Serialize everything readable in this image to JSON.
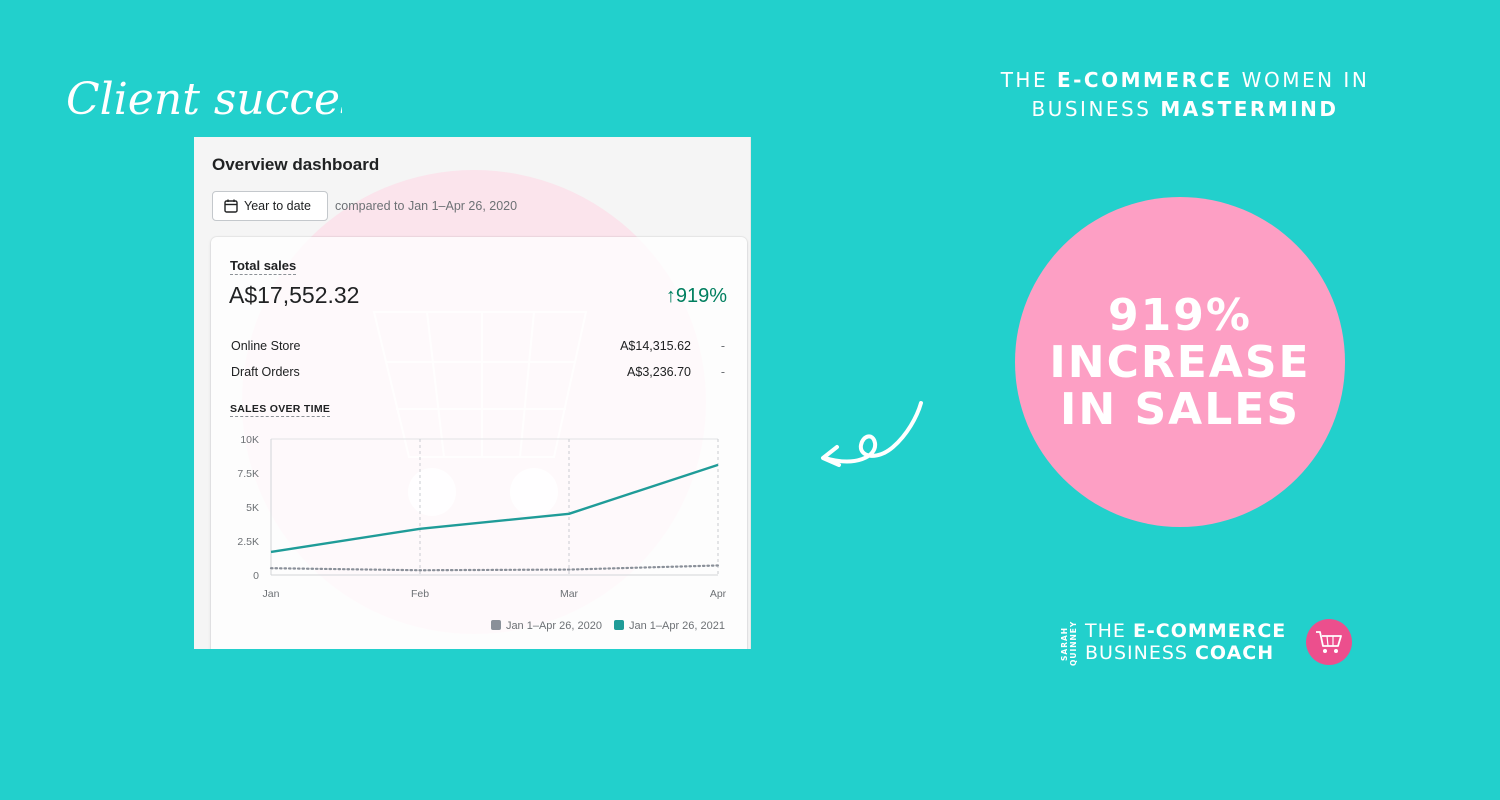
{
  "script_title": "Client success",
  "headline": {
    "line1_pre": "THE ",
    "line1_bold": "E-COMMERCE",
    "line1_post": " WOMEN IN",
    "line2_pre": "BUSINESS ",
    "line2_bold": "MASTERMIND"
  },
  "circle": {
    "line1": "919%",
    "line2": "INCREASE",
    "line3": "IN SALES",
    "color": "#fd9fc4"
  },
  "dashboard": {
    "title": "Overview dashboard",
    "date_button": "Year to date",
    "compare_text": "compared to Jan 1–Apr 26, 2020",
    "total_sales_label": "Total sales",
    "total_sales_value": "A$17,552.32",
    "change": "919%",
    "channels": [
      {
        "label": "Online Store",
        "amount": "A$14,315.62",
        "change": "-"
      },
      {
        "label": "Draft Orders",
        "amount": "A$3,236.70",
        "change": "-"
      }
    ],
    "sales_over_time_label": "SALES OVER TIME"
  },
  "chart_data": {
    "type": "line",
    "x": [
      "Jan",
      "Feb",
      "Mar",
      "Apr"
    ],
    "y_ticks": [
      "10K",
      "7.5K",
      "5K",
      "2.5K",
      "0"
    ],
    "ylim": [
      0,
      10000
    ],
    "grid": true,
    "legend_position": "bottom-right",
    "series": [
      {
        "name": "Jan 1–Apr 26, 2020",
        "values": [
          500,
          350,
          400,
          700
        ],
        "color": "#8a9099",
        "style": "dotted"
      },
      {
        "name": "Jan 1–Apr 26, 2021",
        "values": [
          1700,
          3400,
          4500,
          8100
        ],
        "color": "#1f9c98",
        "style": "solid"
      }
    ]
  },
  "logo": {
    "side_text": "SARAH QUINNEY",
    "line1_pre": "THE ",
    "line1_bold": "E-COMMERCE",
    "line2_pre": "BUSINESS ",
    "line2_bold": "COACH",
    "badge_color": "#ec4f8d"
  },
  "colors": {
    "background": "#22d0cc",
    "positive": "#007f5f"
  }
}
